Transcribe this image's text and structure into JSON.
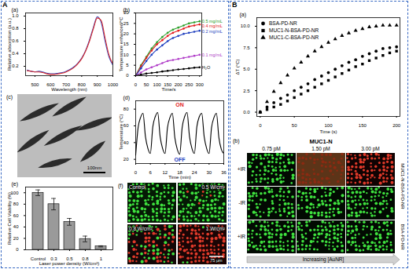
{
  "panel_labels": [
    "A",
    "B"
  ],
  "chart_data": [
    {
      "type": "line",
      "title": "(a)",
      "x_label": "Wavelength (nm)",
      "y_label": "Relative absorption (a.u.)",
      "x": [
        450,
        475,
        500,
        525,
        550,
        575,
        600,
        625,
        650,
        675,
        700,
        725,
        750,
        775,
        800,
        825,
        850,
        875,
        900,
        925,
        950,
        975,
        1000
      ],
      "series": [
        {
          "color": "#3a4bbf",
          "values": [
            0.14,
            0.12,
            0.11,
            0.12,
            0.11,
            0.09,
            0.08,
            0.08,
            0.09,
            0.1,
            0.12,
            0.15,
            0.19,
            0.25,
            0.33,
            0.45,
            0.62,
            0.82,
            0.99,
            0.9,
            0.6,
            0.35,
            0.22
          ]
        },
        {
          "color": "#d62728",
          "values": [
            0.13,
            0.12,
            0.11,
            0.11,
            0.1,
            0.08,
            0.07,
            0.07,
            0.08,
            0.09,
            0.11,
            0.14,
            0.18,
            0.24,
            0.32,
            0.44,
            0.6,
            0.8,
            0.97,
            0.93,
            0.65,
            0.38,
            0.24
          ]
        }
      ],
      "xlim": [
        440,
        1000
      ],
      "xticks": [
        500,
        600,
        700,
        800,
        900,
        1000
      ],
      "ylim": [
        0.05,
        1.05
      ],
      "yticks": [
        0.2,
        0.4,
        0.6,
        0.8,
        {
          "value": 1,
          "label": "1.0"
        }
      ]
    },
    {
      "type": "line",
      "title": "(b)",
      "x_label": "Time/s",
      "y_label": "Temperature enhanced/°C",
      "marker": "circle",
      "legend": "right",
      "x": [
        0,
        25,
        50,
        75,
        100,
        125,
        150,
        175,
        200,
        225,
        250,
        275,
        300
      ],
      "series": [
        {
          "name": "0.5 mg/mL",
          "color": "#2ca02c",
          "values": [
            0,
            5,
            9,
            13,
            16,
            18.5,
            20.5,
            22,
            23,
            24,
            25,
            25.5,
            26
          ]
        },
        {
          "name": "0.4 mg/mL",
          "color": "#e31a1c",
          "values": [
            0,
            4.5,
            8.5,
            12,
            15,
            17,
            19,
            20.5,
            21.5,
            22.5,
            23.5,
            24,
            24.5
          ]
        },
        {
          "name": "0.2 mg/mL",
          "color": "#1f3fbf",
          "values": [
            0,
            3.5,
            7,
            10,
            12.5,
            14.5,
            16.5,
            18,
            19,
            20,
            20.5,
            21,
            21.5
          ]
        },
        {
          "name": "0.1 mg/mL",
          "color": "#b03cc8",
          "values": [
            0,
            1.5,
            3,
            4,
            5,
            6,
            7,
            7.5,
            8,
            8.5,
            9,
            9.5,
            10
          ]
        },
        {
          "name": "H₂O",
          "color": "#000000",
          "values": [
            0,
            0.5,
            1,
            1.3,
            1.6,
            2,
            2.3,
            2.6,
            3,
            3.2,
            3.5,
            3.8,
            4
          ]
        }
      ],
      "xlim": [
        0,
        310
      ],
      "xticks": [
        0,
        50,
        100,
        150,
        200,
        250,
        300
      ],
      "ylim": [
        0,
        30
      ],
      "yticks": [
        0,
        5,
        10,
        15,
        20,
        25,
        30
      ]
    },
    {
      "type": "line",
      "title": "(d)",
      "x_label": "Time (min)",
      "y_label": "Temperature (°C)",
      "color": "#000000",
      "x": [
        0,
        1,
        2,
        3,
        4,
        5,
        6,
        7,
        8,
        9,
        10,
        11,
        12,
        13,
        14,
        15,
        16,
        17,
        18,
        19,
        20,
        21,
        22,
        23,
        24,
        25,
        26,
        27,
        28,
        29,
        30,
        31,
        32,
        33,
        34,
        35,
        36
      ],
      "series": [
        {
          "values": [
            25,
            58,
            70,
            75,
            47,
            33,
            27,
            59,
            71,
            76,
            47,
            33,
            27,
            58,
            70,
            75,
            46,
            32,
            26,
            58,
            71,
            76,
            47,
            33,
            27,
            59,
            71,
            75,
            47,
            33,
            27,
            58,
            70,
            75,
            46,
            32,
            27
          ]
        }
      ],
      "annotations": [
        {
          "text": "ON",
          "color": "#e31a1c"
        },
        {
          "text": "OFF",
          "color": "#1f3fbf"
        }
      ],
      "xlim": [
        0,
        36
      ],
      "xticks": [
        0,
        6,
        12,
        18,
        24,
        30,
        36
      ],
      "ylim": [
        15,
        90
      ],
      "yticks": [
        20,
        40,
        60,
        80
      ]
    },
    {
      "type": "bar",
      "title": "(e)",
      "x_label": "Laser power density (W/cm²)",
      "y_label": "Relative Cell Viability (%)",
      "color": "#9a9a9a",
      "categories": [
        "Control",
        "0.3",
        "0.5",
        "0.8",
        "1"
      ],
      "values": [
        100,
        80,
        49,
        19,
        6
      ],
      "errors": [
        5,
        10,
        6,
        5,
        1
      ],
      "ylim": [
        0,
        110
      ],
      "yticks": [
        0,
        20,
        40,
        60,
        80,
        100
      ]
    },
    {
      "type": "scatter",
      "title": "(a)",
      "x_label": "Time (s)",
      "y_label": "ΔT (°C)",
      "color": "#000000",
      "legend": "top-left",
      "x": [
        0,
        10,
        20,
        30,
        40,
        50,
        60,
        70,
        80,
        90,
        100,
        110,
        120,
        130,
        140,
        150,
        160,
        170,
        180,
        190,
        200
      ],
      "series": [
        {
          "name": "BSA-PD-NR",
          "marker": "circle",
          "values": [
            0,
            0.6,
            1.1,
            1.6,
            2.0,
            2.5,
            2.9,
            3.3,
            3.8,
            4.2,
            4.6,
            5.0,
            5.4,
            5.8,
            6.1,
            6.5,
            6.8,
            7.1,
            7.4,
            7.5,
            7.6
          ]
        },
        {
          "name": "MUC1-N-BSA-PD-NR",
          "marker": "square",
          "values": [
            0,
            0.3,
            0.6,
            0.9,
            1.3,
            1.7,
            2.1,
            2.5,
            2.9,
            3.3,
            3.7,
            4.1,
            4.5,
            4.9,
            5.3,
            5.6,
            6.0,
            6.3,
            6.6,
            6.9,
            7.1
          ]
        },
        {
          "name": "MUC1-C-BSA-PD-NR",
          "marker": "triangle",
          "values": [
            0,
            1.2,
            2.4,
            3.4,
            4.3,
            5.1,
            5.8,
            6.5,
            7.1,
            7.6,
            8.1,
            8.5,
            8.9,
            9.2,
            9.5,
            9.7,
            9.9,
            10.0,
            10.1,
            10.1,
            10.1
          ]
        }
      ],
      "xlim": [
        -5,
        205
      ],
      "xticks": [
        0,
        50,
        100,
        150,
        200
      ],
      "ylim": [
        -0.5,
        11
      ],
      "yticks": [
        {
          "value": 0,
          "label": "0.0"
        },
        2.5,
        {
          "value": 5,
          "label": "5.0"
        },
        7.5,
        {
          "value": 10,
          "label": "10.0"
        }
      ]
    }
  ],
  "images": [
    {
      "title": "(c)",
      "scale_bar": "100nm"
    },
    {
      "title": "(f)",
      "labels": [
        "Control",
        "0.5 W/cm²",
        "0.8 W/cm²",
        "1 W/cm²"
      ],
      "scale_bar": "75 μm"
    },
    {
      "title": "(b)",
      "heading": "MUC1-N",
      "columns": [
        "0.75 pM",
        "1.50 pM",
        "3.00 pM"
      ],
      "rows": [
        "+IR",
        "-IR",
        "+IR"
      ],
      "groups": [
        "MUC1-N-BSA-PD-NR",
        "BSA-PD-NR"
      ],
      "arrow_label": "Increasing [AuNR]"
    }
  ]
}
